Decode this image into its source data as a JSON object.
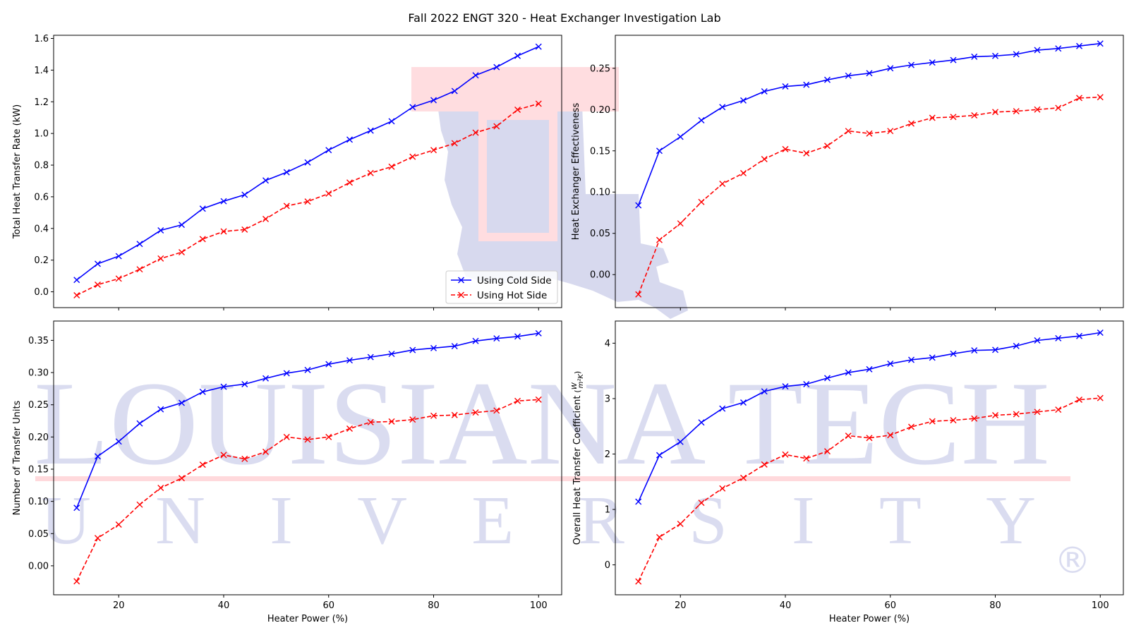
{
  "figure": {
    "title": "Fall 2022 ENGT 320 - Heat Exchanger Investigation Lab"
  },
  "watermark": {
    "line1": "LOUISIANA TECH",
    "line2": "UNIVERSITY",
    "registered_mark": "®",
    "colors": {
      "letters": "#dadcf0",
      "accent": "#ffd9dc",
      "shield": "#d7d9ee"
    }
  },
  "colors": {
    "cold": "#0000ff",
    "hot": "#ff0000"
  },
  "chart_data": [
    {
      "type": "line",
      "title": "",
      "xlabel": "",
      "ylabel": "Total Heat Transfer Rate (kW)",
      "xlim": [
        7.6,
        104.4
      ],
      "ylim": [
        -0.1,
        1.62
      ],
      "xticks": [
        20,
        40,
        60,
        80,
        100
      ],
      "yticks": [
        0.0,
        0.2,
        0.4,
        0.6,
        0.8,
        1.0,
        1.2,
        1.4,
        1.6
      ],
      "ytick_labels": [
        "0.0",
        "0.2",
        "0.4",
        "0.6",
        "0.8",
        "1.0",
        "1.2",
        "1.4",
        "1.6"
      ],
      "show_xtick_labels": false,
      "grid": false,
      "legend": "lower-right",
      "x": [
        12,
        16,
        20,
        24,
        28,
        32,
        36,
        40,
        44,
        48,
        52,
        56,
        60,
        64,
        68,
        72,
        76,
        80,
        84,
        88,
        92,
        96,
        100
      ],
      "series": [
        {
          "name": "Using Cold Side",
          "color": "#0000ff",
          "style": "solid",
          "marker": "x",
          "values": [
            0.075,
            0.177,
            0.225,
            0.302,
            0.388,
            0.423,
            0.525,
            0.572,
            0.613,
            0.703,
            0.755,
            0.817,
            0.895,
            0.961,
            1.018,
            1.077,
            1.166,
            1.21,
            1.268,
            1.367,
            1.419,
            1.49,
            1.548
          ]
        },
        {
          "name": "Using Hot Side",
          "color": "#ff0000",
          "style": "dashed",
          "marker": "x",
          "values": [
            -0.022,
            0.045,
            0.083,
            0.142,
            0.21,
            0.25,
            0.333,
            0.381,
            0.393,
            0.46,
            0.542,
            0.57,
            0.62,
            0.69,
            0.75,
            0.79,
            0.853,
            0.895,
            0.938,
            1.005,
            1.045,
            1.15,
            1.188
          ]
        }
      ]
    },
    {
      "type": "line",
      "title": "",
      "xlabel": "",
      "ylabel": "Heat Exchanger Effectiveness",
      "xlim": [
        7.6,
        104.4
      ],
      "ylim": [
        -0.04,
        0.29
      ],
      "xticks": [
        20,
        40,
        60,
        80,
        100
      ],
      "yticks": [
        0.0,
        0.05,
        0.1,
        0.15,
        0.2,
        0.25
      ],
      "ytick_labels": [
        "0.00",
        "0.05",
        "0.10",
        "0.15",
        "0.20",
        "0.25"
      ],
      "show_xtick_labels": false,
      "grid": false,
      "legend": "none",
      "x": [
        12,
        16,
        20,
        24,
        28,
        32,
        36,
        40,
        44,
        48,
        52,
        56,
        60,
        64,
        68,
        72,
        76,
        80,
        84,
        88,
        92,
        96,
        100
      ],
      "series": [
        {
          "name": "Using Cold Side",
          "color": "#0000ff",
          "style": "solid",
          "marker": "x",
          "values": [
            0.084,
            0.15,
            0.167,
            0.187,
            0.203,
            0.211,
            0.222,
            0.228,
            0.23,
            0.236,
            0.241,
            0.244,
            0.25,
            0.254,
            0.257,
            0.26,
            0.264,
            0.265,
            0.267,
            0.272,
            0.274,
            0.277,
            0.28
          ]
        },
        {
          "name": "Using Hot Side",
          "color": "#ff0000",
          "style": "dashed",
          "marker": "x",
          "values": [
            -0.024,
            0.042,
            0.062,
            0.088,
            0.11,
            0.123,
            0.14,
            0.152,
            0.147,
            0.156,
            0.174,
            0.171,
            0.174,
            0.183,
            0.19,
            0.191,
            0.193,
            0.197,
            0.198,
            0.2,
            0.202,
            0.214,
            0.215
          ]
        }
      ]
    },
    {
      "type": "line",
      "title": "",
      "xlabel": "Heater Power (%)",
      "ylabel": "Number of Transfer Units",
      "xlim": [
        7.6,
        104.4
      ],
      "ylim": [
        -0.045,
        0.38
      ],
      "xticks": [
        20,
        40,
        60,
        80,
        100
      ],
      "yticks": [
        0.0,
        0.05,
        0.1,
        0.15,
        0.2,
        0.25,
        0.3,
        0.35
      ],
      "ytick_labels": [
        "0.00",
        "0.05",
        "0.10",
        "0.15",
        "0.20",
        "0.25",
        "0.30",
        "0.35"
      ],
      "show_xtick_labels": true,
      "grid": false,
      "legend": "none",
      "x": [
        12,
        16,
        20,
        24,
        28,
        32,
        36,
        40,
        44,
        48,
        52,
        56,
        60,
        64,
        68,
        72,
        76,
        80,
        84,
        88,
        92,
        96,
        100
      ],
      "series": [
        {
          "name": "Using Cold Side",
          "color": "#0000ff",
          "style": "solid",
          "marker": "x",
          "values": [
            0.09,
            0.17,
            0.193,
            0.221,
            0.243,
            0.253,
            0.27,
            0.278,
            0.282,
            0.291,
            0.299,
            0.304,
            0.313,
            0.319,
            0.324,
            0.329,
            0.335,
            0.338,
            0.341,
            0.349,
            0.353,
            0.356,
            0.361
          ]
        },
        {
          "name": "Using Hot Side",
          "color": "#ff0000",
          "style": "dashed",
          "marker": "x",
          "values": [
            -0.024,
            0.043,
            0.064,
            0.095,
            0.121,
            0.136,
            0.157,
            0.172,
            0.166,
            0.177,
            0.2,
            0.196,
            0.2,
            0.213,
            0.223,
            0.224,
            0.227,
            0.233,
            0.234,
            0.238,
            0.241,
            0.256,
            0.258
          ]
        }
      ]
    },
    {
      "type": "line",
      "title": "",
      "xlabel": "Heater Power (%)",
      "ylabel": "Overall Heat Transfer Coefficient",
      "ylabel_unit_num": "W",
      "ylabel_unit_den": "m²K",
      "xlim": [
        7.6,
        104.4
      ],
      "ylim": [
        -0.54,
        4.4
      ],
      "xticks": [
        20,
        40,
        60,
        80,
        100
      ],
      "yticks": [
        0,
        1,
        2,
        3,
        4
      ],
      "ytick_labels": [
        "0",
        "1",
        "2",
        "3",
        "4"
      ],
      "show_xtick_labels": true,
      "grid": false,
      "legend": "none",
      "x": [
        12,
        16,
        20,
        24,
        28,
        32,
        36,
        40,
        44,
        48,
        52,
        56,
        60,
        64,
        68,
        72,
        76,
        80,
        84,
        88,
        92,
        96,
        100
      ],
      "series": [
        {
          "name": "Using Cold Side",
          "color": "#0000ff",
          "style": "solid",
          "marker": "x",
          "values": [
            1.14,
            1.98,
            2.22,
            2.57,
            2.82,
            2.93,
            3.13,
            3.22,
            3.26,
            3.37,
            3.47,
            3.53,
            3.63,
            3.7,
            3.74,
            3.81,
            3.87,
            3.88,
            3.95,
            4.05,
            4.09,
            4.13,
            4.19
          ]
        },
        {
          "name": "Using Hot Side",
          "color": "#ff0000",
          "style": "dashed",
          "marker": "x",
          "values": [
            -0.3,
            0.5,
            0.74,
            1.12,
            1.38,
            1.57,
            1.81,
            1.99,
            1.92,
            2.05,
            2.33,
            2.29,
            2.34,
            2.49,
            2.59,
            2.61,
            2.64,
            2.7,
            2.72,
            2.76,
            2.8,
            2.98,
            3.01
          ]
        }
      ]
    }
  ]
}
